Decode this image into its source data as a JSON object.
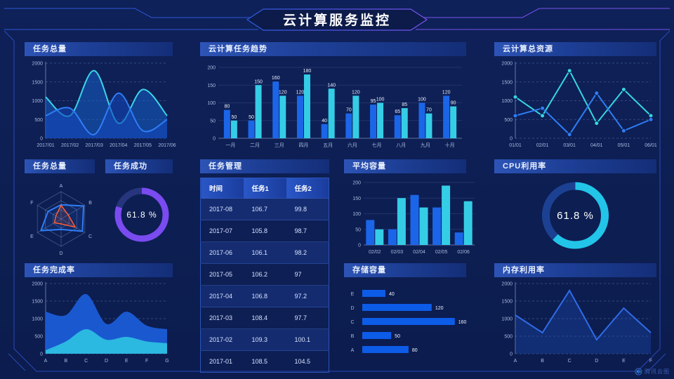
{
  "page": {
    "title": "云计算服务监控",
    "watermark": "腾讯云图"
  },
  "colors": {
    "background": "#0d1e52",
    "blue_series": "#1b66e8",
    "cyan_series": "#35cde6",
    "purple_gauge": "#7a4bf0",
    "cyan_gauge": "#22c5e8",
    "orange_radar": "#ff5e35",
    "frame_blue": "#2e56d6",
    "frame_purple": "#7b52f0"
  },
  "panels": {
    "tasks_total_top": {
      "title": "任务总量"
    },
    "trend": {
      "title": "云计算任务趋势"
    },
    "resources": {
      "title": "云计算总资源"
    },
    "tasks_total_radar": {
      "title": "任务总量"
    },
    "task_success": {
      "title": "任务成功"
    },
    "task_manage": {
      "title": "任务管理"
    },
    "avg_capacity": {
      "title": "平均容量"
    },
    "cpu": {
      "title": "CPU利用率"
    },
    "completion": {
      "title": "任务完成率"
    },
    "storage": {
      "title": "存储容量"
    },
    "memory": {
      "title": "内存利用率"
    }
  },
  "table": {
    "headers": [
      "时间",
      "任务1",
      "任务2"
    ],
    "rows": [
      [
        "2017-08",
        "106.7",
        "99.8"
      ],
      [
        "2017-07",
        "105.8",
        "98.7"
      ],
      [
        "2017-06",
        "106.1",
        "98.2"
      ],
      [
        "2017-05",
        "106.2",
        "97"
      ],
      [
        "2017-04",
        "106.8",
        "97.2"
      ],
      [
        "2017-03",
        "108.4",
        "97.7"
      ],
      [
        "2017-02",
        "109.3",
        "100.1"
      ],
      [
        "2017-01",
        "108.5",
        "104.5"
      ]
    ]
  },
  "chart_data": {
    "tasks_total": {
      "type": "area",
      "smooth": true,
      "x": [
        "2017/01",
        "2017/02",
        "2017/03",
        "2017/04",
        "2017/05",
        "2017/06"
      ],
      "series": [
        {
          "name": "cyan",
          "color": "#3ad6e8",
          "fill": "rgba(23,95,200,0.55)",
          "values": [
            1100,
            600,
            1800,
            400,
            1300,
            600
          ]
        },
        {
          "name": "blue",
          "color": "#2f7df5",
          "fill": "rgba(18,70,185,0.60)",
          "values": [
            600,
            800,
            100,
            1200,
            200,
            500
          ]
        }
      ],
      "ylim": [
        0,
        2000
      ],
      "yticks": [
        0,
        500,
        1000,
        1500,
        2000
      ],
      "grid": "dashed"
    },
    "trend": {
      "type": "bar",
      "categories": [
        "一月",
        "二月",
        "三月",
        "四月",
        "五月",
        "六月",
        "七月",
        "八月",
        "九月",
        "十月"
      ],
      "series": [
        {
          "name": "任务1",
          "color": "#1b66e8",
          "values": [
            80,
            50,
            160,
            120,
            40,
            70,
            95,
            65,
            100,
            120
          ]
        },
        {
          "name": "任务2",
          "color": "#35cde6",
          "values": [
            50,
            150,
            120,
            180,
            140,
            120,
            100,
            85,
            70,
            90
          ]
        }
      ],
      "ylim": [
        0,
        200
      ],
      "yticks": [
        0,
        50,
        100,
        150,
        200
      ],
      "value_labels": true
    },
    "resources": {
      "type": "line",
      "markers": true,
      "x": [
        "01/01",
        "02/01",
        "03/01",
        "04/01",
        "05/01",
        "06/01"
      ],
      "series": [
        {
          "name": "cyan",
          "color": "#35d6e2",
          "values": [
            1100,
            600,
            1800,
            400,
            1300,
            600
          ]
        },
        {
          "name": "blue",
          "color": "#2f7df5",
          "values": [
            600,
            800,
            100,
            1200,
            200,
            500
          ]
        }
      ],
      "ylim": [
        0,
        2000
      ],
      "yticks": [
        0,
        500,
        1000,
        1500,
        2000
      ],
      "grid": "dashed"
    },
    "radar": {
      "type": "radar",
      "axes": [
        "A",
        "B",
        "C",
        "D",
        "E",
        "F"
      ],
      "max": 100,
      "levels": 3,
      "series": [
        {
          "name": "blue",
          "color": "#2f7df5",
          "fill": "rgba(47,125,245,0.12)",
          "width": 2,
          "values": [
            52,
            95,
            90,
            38,
            85,
            55
          ]
        },
        {
          "name": "orange",
          "color": "#ff5e35",
          "fill": "rgba(255,94,53,0.12)",
          "width": 1.5,
          "values": [
            50,
            30,
            60,
            18,
            28,
            22
          ]
        }
      ]
    },
    "task_success": {
      "type": "donut",
      "value": 61.8,
      "label": "61.8 %",
      "color": "#7a4bf0",
      "track": "#27357e",
      "arc_fraction": 0.8
    },
    "avg_capacity": {
      "type": "bar",
      "categories": [
        "02/02",
        "02/03",
        "02/04",
        "02/05",
        "02/06"
      ],
      "series": [
        {
          "name": "blue",
          "color": "#1b66e8",
          "values": [
            80,
            50,
            160,
            120,
            40
          ]
        },
        {
          "name": "cyan",
          "color": "#35cde6",
          "values": [
            50,
            150,
            120,
            190,
            140
          ]
        }
      ],
      "ylim": [
        0,
        200
      ],
      "yticks": [
        0,
        50,
        100,
        150,
        200
      ],
      "value_labels": false
    },
    "cpu": {
      "type": "donut",
      "value": 61.8,
      "label": "61.8 %",
      "color": "#22c5e8",
      "track": "#1c4193",
      "arc_fraction": 0.618
    },
    "completion": {
      "type": "area",
      "smooth": true,
      "x": [
        "A",
        "B",
        "C",
        "D",
        "E",
        "F",
        "G"
      ],
      "series": [
        {
          "name": "blue",
          "color": "#1c57d0",
          "fill": "rgba(27,92,214,0.95)",
          "line_width": 0,
          "values": [
            1200,
            1100,
            1700,
            850,
            1200,
            800,
            700
          ]
        },
        {
          "name": "cyan",
          "color": "#2cc4e2",
          "fill": "rgba(44,190,226,0.95)",
          "line_width": 0,
          "values": [
            100,
            350,
            700,
            400,
            480,
            350,
            300
          ]
        }
      ],
      "ylim": [
        0,
        2000
      ],
      "yticks": [
        0,
        500,
        1000,
        1500,
        2000
      ],
      "grid": "dashed"
    },
    "storage": {
      "type": "hbar",
      "categories": [
        "E",
        "D",
        "C",
        "B",
        "A"
      ],
      "values": [
        40,
        120,
        160,
        50,
        80
      ],
      "xmax": 170,
      "color": "#0d5ce8",
      "value_labels": true
    },
    "memory": {
      "type": "line",
      "smooth": false,
      "x": [
        "A",
        "B",
        "C",
        "D",
        "E",
        "F"
      ],
      "series": [
        {
          "name": "blue",
          "color": "#2f6ce8",
          "fill": "rgba(32,90,210,0.28)",
          "values": [
            1100,
            600,
            1800,
            400,
            1300,
            600
          ]
        }
      ],
      "ylim": [
        0,
        2000
      ],
      "yticks": [
        0,
        500,
        1000,
        1500,
        2000
      ],
      "grid": "dashed"
    }
  }
}
